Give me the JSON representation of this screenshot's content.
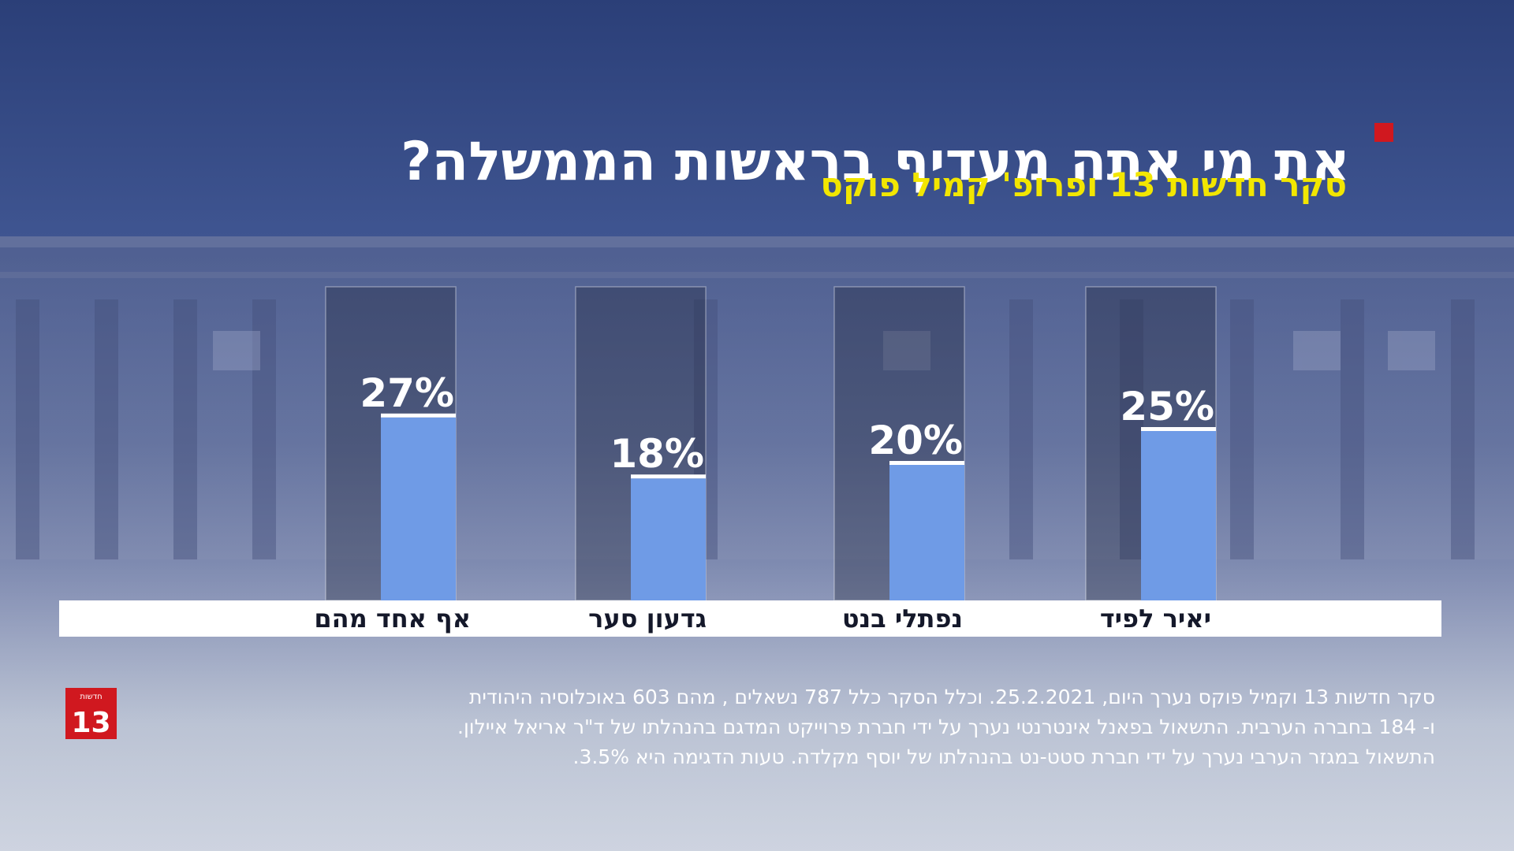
{
  "title": "את מי אתה מעדיף בראשות הממשלה?",
  "subtitle": "סקר חדשות 13 ופרופ' קמיל פוקס",
  "chart_data": {
    "type": "bar",
    "title": "את מי אתה מעדיף בראשות הממשלה?",
    "subtitle": "סקר חדשות 13 ופרופ' קמיל פוקס",
    "categories": [
      "אף אחד מהם",
      "גדעון סער",
      "נפתלי בנט",
      "יאיר לפיד"
    ],
    "values": [
      27,
      18,
      20,
      25
    ],
    "value_labels": [
      "27%",
      "18%",
      "20%",
      "25%"
    ],
    "unit": "%",
    "grid": false,
    "bar_color": "#6f9be6"
  },
  "footnote": {
    "line1": "סקר חדשות 13 וקמיל פוקס נערך היום, 25.2.2021. וכלל  הסקר כלל 787 נשאלים , מהם 603 באוכלוסיה  היהודית",
    "line2": "ו- 184 בחברה הערבית. התשאול  בפאנל אינטרנטי נערך על ידי חברת פרוייקט המדגם בהנהלתו של ד\"ר אריאל איילון.",
    "line3": "התשאול  במגזר הערבי נערך על ידי חברת סטט-נט בהנהלתו של יוסף מקלדה. טעות הדגימה היא 3.5%."
  },
  "logo": {
    "top_text": "חדשות",
    "number": "13",
    "color": "#d0181f"
  },
  "colors": {
    "accent_red": "#d0181f",
    "subtitle_yellow": "#f2e600",
    "bar_blue": "#6f9be6"
  }
}
